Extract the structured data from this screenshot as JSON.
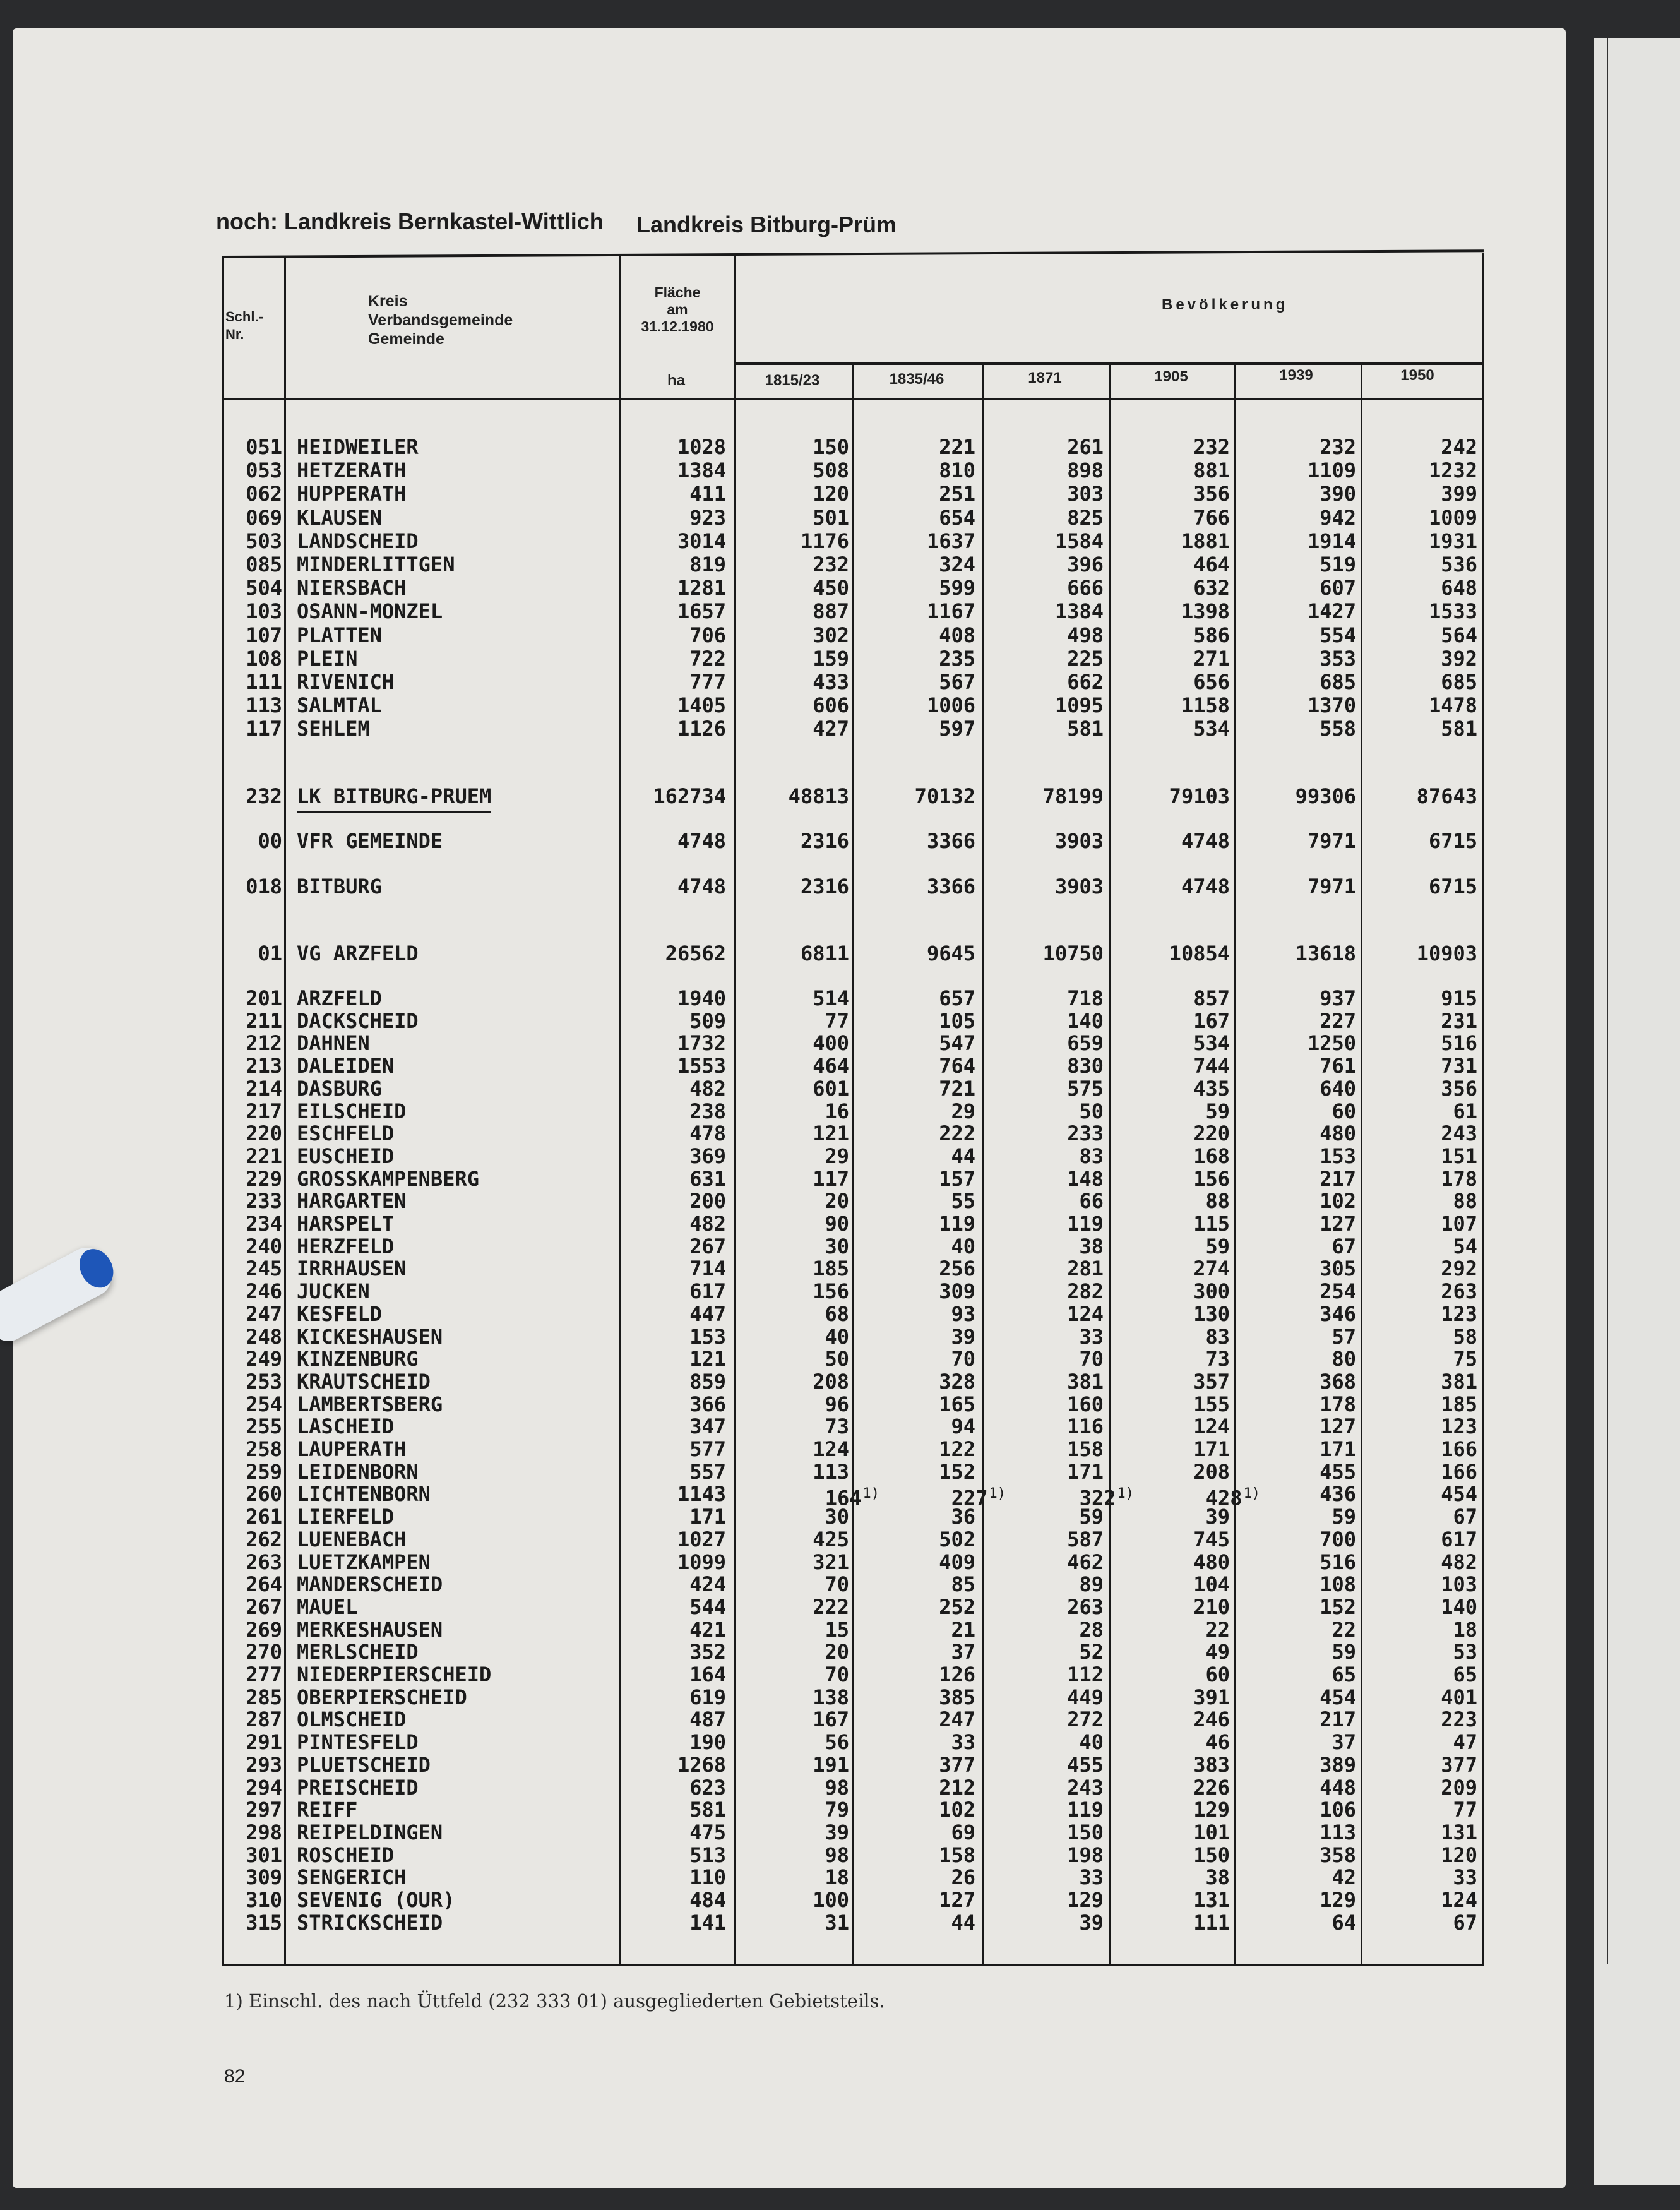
{
  "title": {
    "continued": "noch: Landkreis Bernkastel-Wittlich",
    "current": "Landkreis Bitburg-Prüm"
  },
  "header": {
    "code": "Schl.-\nNr.",
    "name_lines": [
      "Kreis",
      "Verbandsgemeinde",
      "Gemeinde"
    ],
    "area_lines": [
      "Fläche",
      "am",
      "31.12.1980"
    ],
    "population": "Bevölkerung",
    "area_unit": "ha",
    "years": [
      "1815/23",
      "1835/46",
      "1871",
      "1905",
      "1939",
      "1950"
    ]
  },
  "groups": [
    {
      "rows": [
        {
          "code": "051",
          "name": "HEIDWEILER",
          "ha": "1028",
          "values": [
            "150",
            "221",
            "261",
            "232",
            "232",
            "242"
          ]
        },
        {
          "code": "053",
          "name": "HETZERATH",
          "ha": "1384",
          "values": [
            "508",
            "810",
            "898",
            "881",
            "1109",
            "1232"
          ]
        },
        {
          "code": "062",
          "name": "HUPPERATH",
          "ha": "411",
          "values": [
            "120",
            "251",
            "303",
            "356",
            "390",
            "399"
          ]
        },
        {
          "code": "069",
          "name": "KLAUSEN",
          "ha": "923",
          "values": [
            "501",
            "654",
            "825",
            "766",
            "942",
            "1009"
          ]
        },
        {
          "code": "503",
          "name": "LANDSCHEID",
          "ha": "3014",
          "values": [
            "1176",
            "1637",
            "1584",
            "1881",
            "1914",
            "1931"
          ]
        },
        {
          "code": "085",
          "name": "MINDERLITTGEN",
          "ha": "819",
          "values": [
            "232",
            "324",
            "396",
            "464",
            "519",
            "536"
          ]
        },
        {
          "code": "504",
          "name": "NIERSBACH",
          "ha": "1281",
          "values": [
            "450",
            "599",
            "666",
            "632",
            "607",
            "648"
          ]
        },
        {
          "code": "103",
          "name": "OSANN-MONZEL",
          "ha": "1657",
          "values": [
            "887",
            "1167",
            "1384",
            "1398",
            "1427",
            "1533"
          ]
        },
        {
          "code": "107",
          "name": "PLATTEN",
          "ha": "706",
          "values": [
            "302",
            "408",
            "498",
            "586",
            "554",
            "564"
          ]
        },
        {
          "code": "108",
          "name": "PLEIN",
          "ha": "722",
          "values": [
            "159",
            "235",
            "225",
            "271",
            "353",
            "392"
          ]
        },
        {
          "code": "111",
          "name": "RIVENICH",
          "ha": "777",
          "values": [
            "433",
            "567",
            "662",
            "656",
            "685",
            "685"
          ]
        },
        {
          "code": "113",
          "name": "SALMTAL",
          "ha": "1405",
          "values": [
            "606",
            "1006",
            "1095",
            "1158",
            "1370",
            "1478"
          ]
        },
        {
          "code": "117",
          "name": "SEHLEM",
          "ha": "1126",
          "values": [
            "427",
            "597",
            "581",
            "534",
            "558",
            "581"
          ]
        }
      ]
    },
    {
      "rows": [
        {
          "code": "232",
          "name": "LK BITBURG-PRUEM",
          "ha": "162734",
          "values": [
            "48813",
            "70132",
            "78199",
            "79103",
            "99306",
            "87643"
          ],
          "underlined": true
        }
      ]
    },
    {
      "rows": [
        {
          "code": "00",
          "name": "VFR GEMEINDE",
          "ha": "4748",
          "values": [
            "2316",
            "3366",
            "3903",
            "4748",
            "7971",
            "6715"
          ]
        }
      ]
    },
    {
      "rows": [
        {
          "code": "018",
          "name": "BITBURG",
          "ha": "4748",
          "values": [
            "2316",
            "3366",
            "3903",
            "4748",
            "7971",
            "6715"
          ]
        }
      ]
    },
    {
      "rows": [
        {
          "code": "01",
          "name": "VG ARZFELD",
          "ha": "26562",
          "values": [
            "6811",
            "9645",
            "10750",
            "10854",
            "13618",
            "10903"
          ]
        }
      ]
    },
    {
      "rows": [
        {
          "code": "201",
          "name": "ARZFELD",
          "ha": "1940",
          "values": [
            "514",
            "657",
            "718",
            "857",
            "937",
            "915"
          ]
        },
        {
          "code": "211",
          "name": "DACKSCHEID",
          "ha": "509",
          "values": [
            "77",
            "105",
            "140",
            "167",
            "227",
            "231"
          ]
        },
        {
          "code": "212",
          "name": "DAHNEN",
          "ha": "1732",
          "values": [
            "400",
            "547",
            "659",
            "534",
            "1250",
            "516"
          ]
        },
        {
          "code": "213",
          "name": "DALEIDEN",
          "ha": "1553",
          "values": [
            "464",
            "764",
            "830",
            "744",
            "761",
            "731"
          ]
        },
        {
          "code": "214",
          "name": "DASBURG",
          "ha": "482",
          "values": [
            "601",
            "721",
            "575",
            "435",
            "640",
            "356"
          ]
        },
        {
          "code": "217",
          "name": "EILSCHEID",
          "ha": "238",
          "values": [
            "16",
            "29",
            "50",
            "59",
            "60",
            "61"
          ]
        },
        {
          "code": "220",
          "name": "ESCHFELD",
          "ha": "478",
          "values": [
            "121",
            "222",
            "233",
            "220",
            "480",
            "243"
          ]
        },
        {
          "code": "221",
          "name": "EUSCHEID",
          "ha": "369",
          "values": [
            "29",
            "44",
            "83",
            "168",
            "153",
            "151"
          ]
        },
        {
          "code": "229",
          "name": "GROSSKAMPENBERG",
          "ha": "631",
          "values": [
            "117",
            "157",
            "148",
            "156",
            "217",
            "178"
          ]
        },
        {
          "code": "233",
          "name": "HARGARTEN",
          "ha": "200",
          "values": [
            "20",
            "55",
            "66",
            "88",
            "102",
            "88"
          ]
        },
        {
          "code": "234",
          "name": "HARSPELT",
          "ha": "482",
          "values": [
            "90",
            "119",
            "119",
            "115",
            "127",
            "107"
          ]
        },
        {
          "code": "240",
          "name": "HERZFELD",
          "ha": "267",
          "values": [
            "30",
            "40",
            "38",
            "59",
            "67",
            "54"
          ]
        },
        {
          "code": "245",
          "name": "IRRHAUSEN",
          "ha": "714",
          "values": [
            "185",
            "256",
            "281",
            "274",
            "305",
            "292"
          ]
        },
        {
          "code": "246",
          "name": "JUCKEN",
          "ha": "617",
          "values": [
            "156",
            "309",
            "282",
            "300",
            "254",
            "263"
          ]
        },
        {
          "code": "247",
          "name": "KESFELD",
          "ha": "447",
          "values": [
            "68",
            "93",
            "124",
            "130",
            "346",
            "123"
          ]
        },
        {
          "code": "248",
          "name": "KICKESHAUSEN",
          "ha": "153",
          "values": [
            "40",
            "39",
            "33",
            "83",
            "57",
            "58"
          ]
        },
        {
          "code": "249",
          "name": "KINZENBURG",
          "ha": "121",
          "values": [
            "50",
            "70",
            "70",
            "73",
            "80",
            "75"
          ]
        },
        {
          "code": "253",
          "name": "KRAUTSCHEID",
          "ha": "859",
          "values": [
            "208",
            "328",
            "381",
            "357",
            "368",
            "381"
          ]
        },
        {
          "code": "254",
          "name": "LAMBERTSBERG",
          "ha": "366",
          "values": [
            "96",
            "165",
            "160",
            "155",
            "178",
            "185"
          ]
        },
        {
          "code": "255",
          "name": "LASCHEID",
          "ha": "347",
          "values": [
            "73",
            "94",
            "116",
            "124",
            "127",
            "123"
          ]
        },
        {
          "code": "258",
          "name": "LAUPERATH",
          "ha": "577",
          "values": [
            "124",
            "122",
            "158",
            "171",
            "171",
            "166"
          ]
        },
        {
          "code": "259",
          "name": "LEIDENBORN",
          "ha": "557",
          "values": [
            "113",
            "152",
            "171",
            "208",
            "455",
            "166"
          ]
        },
        {
          "code": "260",
          "name": "LICHTENBORN",
          "ha": "1143",
          "values": [
            "164",
            "227",
            "322",
            "428",
            "436",
            "454"
          ],
          "footnote_cols": [
            0,
            1,
            2,
            3
          ],
          "footnote_mark": "1)"
        },
        {
          "code": "261",
          "name": "LIERFELD",
          "ha": "171",
          "values": [
            "30",
            "36",
            "59",
            "39",
            "59",
            "67"
          ]
        },
        {
          "code": "262",
          "name": "LUENEBACH",
          "ha": "1027",
          "values": [
            "425",
            "502",
            "587",
            "745",
            "700",
            "617"
          ]
        },
        {
          "code": "263",
          "name": "LUETZKAMPEN",
          "ha": "1099",
          "values": [
            "321",
            "409",
            "462",
            "480",
            "516",
            "482"
          ]
        },
        {
          "code": "264",
          "name": "MANDERSCHEID",
          "ha": "424",
          "values": [
            "70",
            "85",
            "89",
            "104",
            "108",
            "103"
          ]
        },
        {
          "code": "267",
          "name": "MAUEL",
          "ha": "544",
          "values": [
            "222",
            "252",
            "263",
            "210",
            "152",
            "140"
          ]
        },
        {
          "code": "269",
          "name": "MERKESHAUSEN",
          "ha": "421",
          "values": [
            "15",
            "21",
            "28",
            "22",
            "22",
            "18"
          ]
        },
        {
          "code": "270",
          "name": "MERLSCHEID",
          "ha": "352",
          "values": [
            "20",
            "37",
            "52",
            "49",
            "59",
            "53"
          ]
        },
        {
          "code": "277",
          "name": "NIEDERPIERSCHEID",
          "ha": "164",
          "values": [
            "70",
            "126",
            "112",
            "60",
            "65",
            "65"
          ]
        },
        {
          "code": "285",
          "name": "OBERPIERSCHEID",
          "ha": "619",
          "values": [
            "138",
            "385",
            "449",
            "391",
            "454",
            "401"
          ]
        },
        {
          "code": "287",
          "name": "OLMSCHEID",
          "ha": "487",
          "values": [
            "167",
            "247",
            "272",
            "246",
            "217",
            "223"
          ]
        },
        {
          "code": "291",
          "name": "PINTESFELD",
          "ha": "190",
          "values": [
            "56",
            "33",
            "40",
            "46",
            "37",
            "47"
          ]
        },
        {
          "code": "293",
          "name": "PLUETSCHEID",
          "ha": "1268",
          "values": [
            "191",
            "377",
            "455",
            "383",
            "389",
            "377"
          ]
        },
        {
          "code": "294",
          "name": "PREISCHEID",
          "ha": "623",
          "values": [
            "98",
            "212",
            "243",
            "226",
            "448",
            "209"
          ]
        },
        {
          "code": "297",
          "name": "REIFF",
          "ha": "581",
          "values": [
            "79",
            "102",
            "119",
            "129",
            "106",
            "77"
          ]
        },
        {
          "code": "298",
          "name": "REIPELDINGEN",
          "ha": "475",
          "values": [
            "39",
            "69",
            "150",
            "101",
            "113",
            "131"
          ]
        },
        {
          "code": "301",
          "name": "ROSCHEID",
          "ha": "513",
          "values": [
            "98",
            "158",
            "198",
            "150",
            "358",
            "120"
          ]
        },
        {
          "code": "309",
          "name": "SENGERICH",
          "ha": "110",
          "values": [
            "18",
            "26",
            "33",
            "38",
            "42",
            "33"
          ]
        },
        {
          "code": "310",
          "name": "SEVENIG (OUR)",
          "ha": "484",
          "values": [
            "100",
            "127",
            "129",
            "131",
            "129",
            "124"
          ]
        },
        {
          "code": "315",
          "name": "STRICKSCHEID",
          "ha": "141",
          "values": [
            "31",
            "44",
            "39",
            "111",
            "64",
            "67"
          ]
        }
      ]
    }
  ],
  "footnote": "1) Einschl. des nach Üttfeld (232 333 01) ausgegliederten Gebietsteils.",
  "page_number": "82"
}
